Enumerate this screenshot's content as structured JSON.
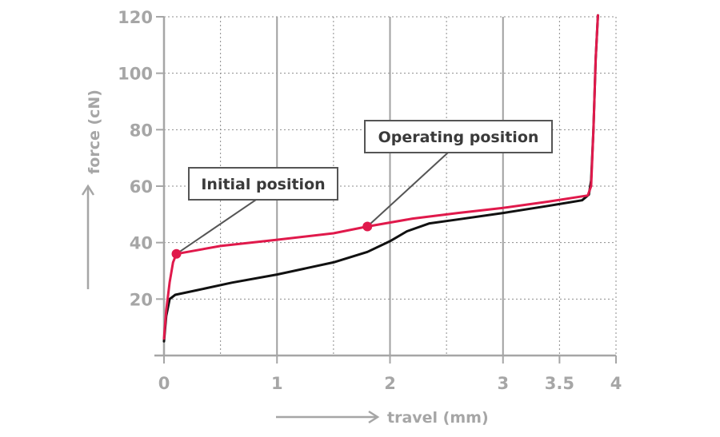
{
  "chart_data": {
    "type": "line",
    "xlabel": "travel (mm)",
    "ylabel": "force (cN)",
    "xlim": [
      0,
      4
    ],
    "ylim": [
      0,
      120
    ],
    "x_ticks": [
      0,
      1,
      2,
      3,
      3.5,
      4
    ],
    "x_tick_labels": [
      "0",
      "1",
      "2",
      "3",
      "3.5",
      "4"
    ],
    "y_ticks": [
      20,
      40,
      60,
      80,
      100,
      120
    ],
    "y_tick_labels": [
      "20",
      "40",
      "60",
      "80",
      "100",
      "120"
    ],
    "x_gridlines_solid": [
      1,
      2,
      3
    ],
    "x_gridlines_dashed": [
      0.5,
      1.5,
      2.5,
      3.5,
      4
    ],
    "grid": true,
    "series": [
      {
        "color": "#e0194b",
        "points": [
          [
            0.0,
            6
          ],
          [
            0.02,
            16
          ],
          [
            0.05,
            26
          ],
          [
            0.08,
            33
          ],
          [
            0.11,
            36
          ],
          [
            0.5,
            38.8
          ],
          [
            1.0,
            41
          ],
          [
            1.5,
            43.3
          ],
          [
            1.8,
            45.7
          ],
          [
            2.2,
            48.5
          ],
          [
            2.6,
            50.5
          ],
          [
            3.0,
            52.3
          ],
          [
            3.4,
            54.5
          ],
          [
            3.75,
            56.7
          ],
          [
            3.78,
            60
          ],
          [
            3.8,
            80
          ],
          [
            3.82,
            105
          ],
          [
            3.84,
            122
          ]
        ]
      },
      {
        "color": "#111111",
        "points": [
          [
            0.0,
            5
          ],
          [
            0.02,
            14
          ],
          [
            0.05,
            20
          ],
          [
            0.1,
            21.5
          ],
          [
            0.3,
            23.2
          ],
          [
            0.6,
            25.8
          ],
          [
            1.0,
            28.7
          ],
          [
            1.5,
            33
          ],
          [
            1.8,
            36.7
          ],
          [
            2.0,
            40.5
          ],
          [
            2.15,
            44
          ],
          [
            2.35,
            46.8
          ],
          [
            2.6,
            48.2
          ],
          [
            3.0,
            50.5
          ],
          [
            3.4,
            53
          ],
          [
            3.7,
            55
          ],
          [
            3.76,
            57
          ],
          [
            3.78,
            62
          ],
          [
            3.8,
            80
          ],
          [
            3.82,
            105
          ],
          [
            3.84,
            122
          ]
        ]
      }
    ],
    "annotations": [
      {
        "label": "Initial position",
        "point": [
          0.11,
          36
        ],
        "color": "#e0194b"
      },
      {
        "label": "Operating position",
        "point": [
          1.8,
          45.7
        ],
        "color": "#e0194b"
      }
    ]
  }
}
